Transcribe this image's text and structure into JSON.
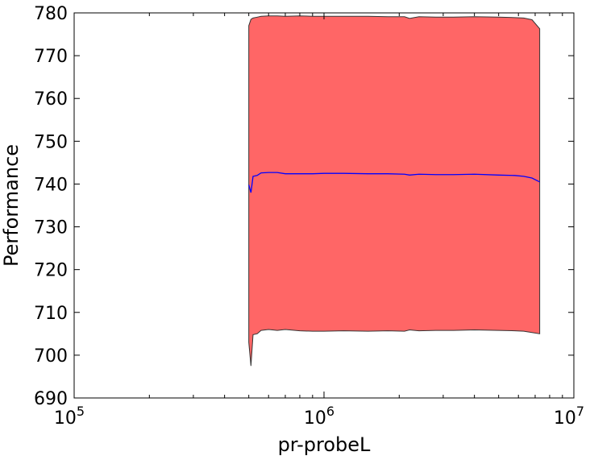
{
  "chart_data": {
    "type": "area",
    "xscale": "log",
    "xlabel": "pr-probeL",
    "ylabel": "Performance",
    "xlim": [
      100000,
      10000000
    ],
    "ylim": [
      690,
      780
    ],
    "x_ticks": [
      {
        "value": 100000,
        "base": "10",
        "exp": "5"
      },
      {
        "value": 1000000,
        "base": "10",
        "exp": "6"
      },
      {
        "value": 10000000,
        "base": "10",
        "exp": "7"
      }
    ],
    "y_ticks": [
      690,
      700,
      710,
      720,
      730,
      740,
      750,
      760,
      770,
      780
    ],
    "grid": false,
    "series": [
      {
        "kind": "band",
        "color": "#ff6666",
        "edge_color": "#333333",
        "x": [
          500000,
          510000,
          520000,
          540000,
          560000,
          600000,
          650000,
          700000,
          800000,
          900000,
          1000000,
          1200000,
          1500000,
          1800000,
          2100000,
          2200000,
          2400000,
          2800000,
          3300000,
          4000000,
          5000000,
          5800000,
          6300000,
          6800000,
          7300000
        ],
        "upper": [
          777.0,
          778.5,
          778.8,
          779.0,
          779.2,
          779.3,
          779.3,
          779.2,
          779.3,
          779.2,
          779.2,
          779.2,
          779.2,
          779.1,
          779.1,
          778.7,
          779.1,
          779.0,
          779.0,
          779.1,
          779.0,
          778.9,
          778.8,
          778.4,
          776.3
        ],
        "lower": [
          703.0,
          697.5,
          704.8,
          705.0,
          705.8,
          706.0,
          705.8,
          706.0,
          705.7,
          705.6,
          705.6,
          705.7,
          705.6,
          705.7,
          705.6,
          705.9,
          705.7,
          705.8,
          705.8,
          705.9,
          705.8,
          705.7,
          705.6,
          705.3,
          705.0
        ]
      },
      {
        "kind": "line",
        "color": "#0000ff",
        "x": [
          500000,
          510000,
          520000,
          540000,
          560000,
          600000,
          650000,
          700000,
          800000,
          900000,
          1000000,
          1200000,
          1500000,
          1800000,
          2100000,
          2200000,
          2400000,
          2800000,
          3300000,
          4000000,
          5000000,
          5800000,
          6300000,
          6800000,
          7300000
        ],
        "y": [
          739.8,
          738.0,
          741.8,
          742.0,
          742.6,
          742.7,
          742.7,
          742.4,
          742.4,
          742.4,
          742.5,
          742.5,
          742.4,
          742.4,
          742.3,
          742.1,
          742.3,
          742.2,
          742.2,
          742.3,
          742.1,
          742.0,
          741.8,
          741.4,
          740.5
        ]
      }
    ]
  }
}
